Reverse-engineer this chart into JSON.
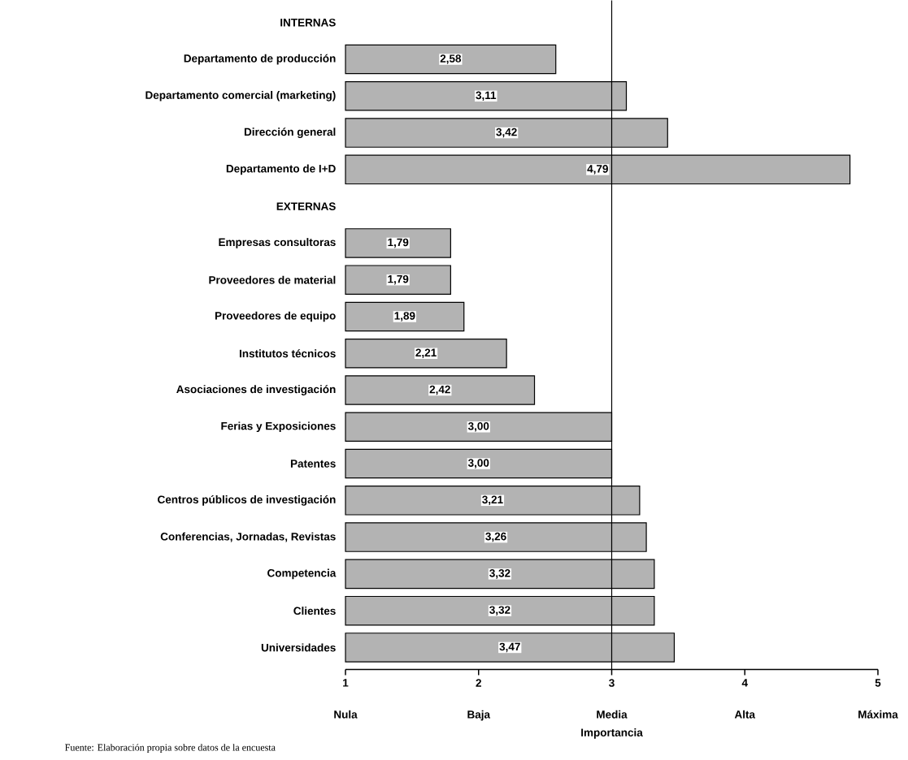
{
  "chart_data": {
    "type": "bar",
    "orientation": "horizontal",
    "categories": [
      "INTERNAS",
      "Departamento de producción",
      "Departamento comercial (marketing)",
      "Dirección general",
      "Departamento de I+D",
      "EXTERNAS",
      "Empresas consultoras",
      "Proveedores de material",
      "Proveedores de equipo",
      "Institutos técnicos",
      "Asociaciones de investigación",
      "Ferias y Exposiciones",
      "Patentes",
      "Centros públicos de investigación",
      "Conferencias, Jornadas, Revistas",
      "Competencia",
      "Clientes",
      "Universidades"
    ],
    "values": [
      null,
      2.58,
      3.11,
      3.42,
      4.79,
      null,
      1.79,
      1.79,
      1.89,
      2.21,
      2.42,
      3.0,
      3.0,
      3.21,
      3.26,
      3.32,
      3.32,
      3.47
    ],
    "value_labels": [
      null,
      "2,58",
      "3,11",
      "3,42",
      "4,79",
      null,
      "1,79",
      "1,79",
      "1,89",
      "2,21",
      "2,42",
      "3,00",
      "3,00",
      "3,21",
      "3,26",
      "3,32",
      "3,32",
      "3,47"
    ],
    "color": "#b3b3b3",
    "xlim": [
      1,
      5
    ],
    "xticks": [
      1,
      2,
      3,
      4,
      5
    ],
    "xlabel": "Importancia",
    "ref_lines": [
      {
        "axis": "x",
        "value": 3
      }
    ],
    "grid": false,
    "annotations": [
      "Nula",
      "Baja",
      "Media",
      "Alta",
      "Máxima",
      "Fuente: Elaboración propia sobre datos de la encuesta"
    ]
  }
}
